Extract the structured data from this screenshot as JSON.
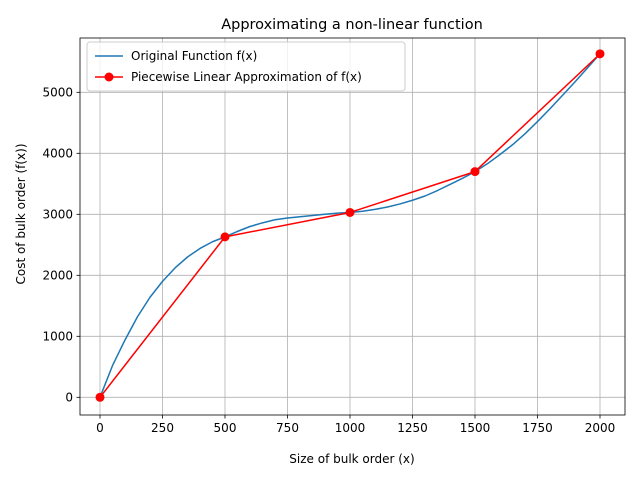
{
  "chart_data": {
    "type": "line",
    "title": "Approximating a non-linear function",
    "xlabel": "Size of bulk order (x)",
    "ylabel": "Cost of bulk order (f(x))",
    "xlim": [
      -80,
      2100
    ],
    "ylim": [
      -290,
      5890
    ],
    "xticks": [
      0,
      250,
      500,
      750,
      1000,
      1250,
      1500,
      1750,
      2000
    ],
    "yticks": [
      0,
      1000,
      2000,
      3000,
      4000,
      5000
    ],
    "xtick_labels": [
      "0",
      "250",
      "500",
      "750",
      "1000",
      "1250",
      "1500",
      "1750",
      "2000"
    ],
    "ytick_labels": [
      "0",
      "1000",
      "2000",
      "3000",
      "4000",
      "5000"
    ],
    "grid": true,
    "legend_position": "top-left",
    "series": [
      {
        "name": "Original Function f(x)",
        "color": "#1f77b4",
        "marker": "none",
        "x": [
          0,
          50,
          100,
          150,
          200,
          250,
          300,
          350,
          400,
          450,
          500,
          550,
          600,
          650,
          700,
          750,
          800,
          850,
          900,
          950,
          1000,
          1050,
          1100,
          1150,
          1200,
          1250,
          1300,
          1350,
          1400,
          1450,
          1500,
          1550,
          1600,
          1650,
          1700,
          1750,
          1800,
          1850,
          1900,
          1950,
          2000
        ],
        "y": [
          0,
          520,
          940,
          1320,
          1640,
          1900,
          2120,
          2300,
          2440,
          2550,
          2630,
          2720,
          2800,
          2860,
          2910,
          2940,
          2960,
          2980,
          3000,
          3020,
          3030,
          3050,
          3080,
          3120,
          3170,
          3230,
          3300,
          3390,
          3490,
          3590,
          3700,
          3830,
          3980,
          4140,
          4320,
          4520,
          4730,
          4950,
          5170,
          5400,
          5630
        ]
      },
      {
        "name": "Piecewise Linear Approximation of f(x)",
        "color": "#ff0000",
        "marker": "circle",
        "x": [
          0,
          500,
          1000,
          1500,
          2000
        ],
        "y": [
          0,
          2630,
          3030,
          3700,
          5630
        ]
      }
    ]
  }
}
